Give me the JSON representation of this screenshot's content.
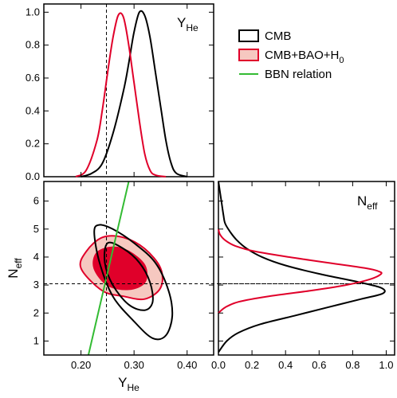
{
  "chart_data": [
    {
      "type": "line",
      "panel": "top-left",
      "label": "Y",
      "label_sub": "He",
      "xlim": [
        0.13,
        0.45
      ],
      "ylim": [
        0.0,
        1.05
      ],
      "x_ticks": [
        0.2,
        0.3,
        0.4
      ],
      "y_ticks": [
        0.0,
        0.2,
        0.4,
        0.6,
        0.8,
        1.0
      ],
      "y_tick_labels": [
        "0.0",
        "0.2",
        "0.4",
        "0.6",
        "0.8",
        "1.0"
      ],
      "reference_x": 0.248,
      "series": [
        {
          "name": "CMB",
          "color": "#000000",
          "x": [
            0.2,
            0.22,
            0.24,
            0.26,
            0.28,
            0.29,
            0.3,
            0.31,
            0.32,
            0.33,
            0.34,
            0.35,
            0.36,
            0.37,
            0.38,
            0.4
          ],
          "y": [
            0.0,
            0.02,
            0.08,
            0.26,
            0.52,
            0.69,
            0.88,
            1.0,
            0.98,
            0.85,
            0.64,
            0.43,
            0.22,
            0.08,
            0.02,
            0.0
          ]
        },
        {
          "name": "CMB+BAO+H0",
          "color": "#e0002a",
          "x": [
            0.19,
            0.21,
            0.23,
            0.24,
            0.25,
            0.26,
            0.27,
            0.28,
            0.29,
            0.3,
            0.31,
            0.32,
            0.33,
            0.34,
            0.36
          ],
          "y": [
            0.0,
            0.04,
            0.22,
            0.4,
            0.63,
            0.84,
            0.98,
            0.97,
            0.8,
            0.57,
            0.34,
            0.14,
            0.04,
            0.01,
            0.0
          ]
        }
      ]
    },
    {
      "type": "contour",
      "panel": "bottom-left",
      "xlabel": "Y",
      "xlabel_sub": "He",
      "ylabel": "N",
      "ylabel_sub": "eff",
      "xlim": [
        0.13,
        0.45
      ],
      "ylim": [
        0.5,
        6.7
      ],
      "x_ticks": [
        0.2,
        0.3,
        0.4
      ],
      "x_tick_labels": [
        "0.20",
        "0.30",
        "0.40"
      ],
      "y_ticks": [
        1,
        2,
        3,
        4,
        5,
        6
      ],
      "reference_x": 0.248,
      "reference_y": 3.046,
      "bbn_relation": [
        [
          0.214,
          0.5
        ],
        [
          0.29,
          6.7
        ]
      ],
      "contours": [
        {
          "name": "CMB 95%",
          "color": "#000000",
          "points": [
            [
              0.235,
              5.15
            ],
            [
              0.26,
              5.0
            ],
            [
              0.3,
              4.5
            ],
            [
              0.34,
              3.8
            ],
            [
              0.365,
              2.8
            ],
            [
              0.372,
              1.9
            ],
            [
              0.36,
              1.2
            ],
            [
              0.335,
              1.1
            ],
            [
              0.3,
              1.7
            ],
            [
              0.26,
              2.6
            ],
            [
              0.235,
              3.8
            ],
            [
              0.225,
              4.9
            ]
          ]
        },
        {
          "name": "CMB 68%",
          "color": "#000000",
          "points": [
            [
              0.25,
              4.5
            ],
            [
              0.28,
              4.3
            ],
            [
              0.31,
              3.8
            ],
            [
              0.33,
              3.1
            ],
            [
              0.335,
              2.4
            ],
            [
              0.32,
              2.1
            ],
            [
              0.29,
              2.3
            ],
            [
              0.26,
              3.0
            ],
            [
              0.245,
              3.8
            ]
          ]
        },
        {
          "name": "CMB+BAO+H0 95%",
          "color": "#e0002a",
          "fill": "#f6c8c0",
          "points": [
            [
              0.21,
              4.2
            ],
            [
              0.24,
              4.7
            ],
            [
              0.28,
              4.7
            ],
            [
              0.32,
              4.3
            ],
            [
              0.35,
              3.6
            ],
            [
              0.35,
              2.9
            ],
            [
              0.32,
              2.5
            ],
            [
              0.28,
              2.6
            ],
            [
              0.24,
              2.8
            ],
            [
              0.2,
              3.6
            ]
          ]
        },
        {
          "name": "CMB+BAO+H0 68%",
          "color": "#e0002a",
          "fill": "#e0002a",
          "points": [
            [
              0.23,
              4.15
            ],
            [
              0.26,
              4.35
            ],
            [
              0.29,
              4.2
            ],
            [
              0.32,
              3.7
            ],
            [
              0.32,
              3.1
            ],
            [
              0.29,
              2.85
            ],
            [
              0.25,
              3.0
            ],
            [
              0.225,
              3.6
            ]
          ]
        }
      ]
    },
    {
      "type": "line",
      "panel": "bottom-right",
      "label": "N",
      "label_sub": "eff",
      "xlim": [
        0.0,
        1.05
      ],
      "ylim": [
        0.5,
        6.7
      ],
      "x_ticks": [
        0.0,
        0.2,
        0.4,
        0.6,
        0.8,
        1.0
      ],
      "x_tick_labels": [
        "0.0",
        "0.2",
        "0.4",
        "0.6",
        "0.8",
        "1.0"
      ],
      "reference_y": 3.046,
      "series": [
        {
          "name": "CMB",
          "color": "#000000",
          "y": [
            0.6,
            1.0,
            1.3,
            1.6,
            1.9,
            2.2,
            2.5,
            2.7,
            2.9,
            3.1,
            3.4,
            3.7,
            4.0,
            4.3,
            4.6,
            4.9,
            5.2,
            5.5,
            5.9,
            6.3,
            6.7
          ],
          "x": [
            0.0,
            0.05,
            0.12,
            0.25,
            0.45,
            0.65,
            0.85,
            0.98,
            0.97,
            0.84,
            0.6,
            0.4,
            0.26,
            0.17,
            0.11,
            0.07,
            0.04,
            0.03,
            0.02,
            0.01,
            0.0
          ]
        },
        {
          "name": "CMB+BAO+H0",
          "color": "#e0002a",
          "y": [
            2.0,
            2.2,
            2.4,
            2.6,
            2.8,
            3.0,
            3.2,
            3.4,
            3.5,
            3.6,
            3.8,
            4.0,
            4.2,
            4.4,
            4.6,
            4.8,
            5.0
          ],
          "x": [
            0.0,
            0.04,
            0.12,
            0.3,
            0.55,
            0.76,
            0.9,
            0.97,
            0.95,
            0.88,
            0.65,
            0.42,
            0.22,
            0.1,
            0.04,
            0.01,
            0.0
          ]
        }
      ]
    }
  ],
  "legend": [
    {
      "text": "CMB",
      "type": "box",
      "edge": "#000000",
      "fill": "#ffffff"
    },
    {
      "text": "CMB+BAO+H",
      "sub": "0",
      "type": "box",
      "edge": "#e0002a",
      "fill": "#f6c8c0"
    },
    {
      "text": "BBN relation",
      "type": "line",
      "edge": "#33bb33"
    }
  ]
}
